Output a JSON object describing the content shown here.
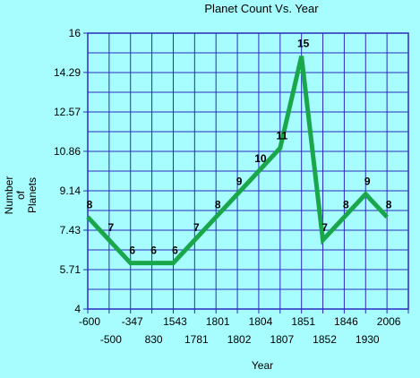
{
  "chart_data": {
    "type": "line",
    "title": "Planet Count Vs. Year",
    "xlabel": "Year",
    "ylabel": [
      "Number",
      "of",
      "Planets"
    ],
    "categories": [
      "-600",
      "-500",
      "-347",
      "830",
      "1543",
      "1781",
      "1801",
      "1802",
      "1804",
      "1807",
      "1851",
      "1852",
      "1846",
      "1930",
      "2006"
    ],
    "values": [
      8,
      7,
      6,
      6,
      6,
      7,
      8,
      9,
      10,
      11,
      15,
      7,
      8,
      9,
      8
    ],
    "ylim": [
      4,
      16
    ],
    "yticks": [
      "4",
      "5.71",
      "7.43",
      "9.14",
      "10.86",
      "12.57",
      "14.29",
      "16"
    ],
    "grid": true,
    "colors": {
      "line": "#1aa64a",
      "grid": "#2b2bbf",
      "background": "#a7fdfd"
    }
  }
}
